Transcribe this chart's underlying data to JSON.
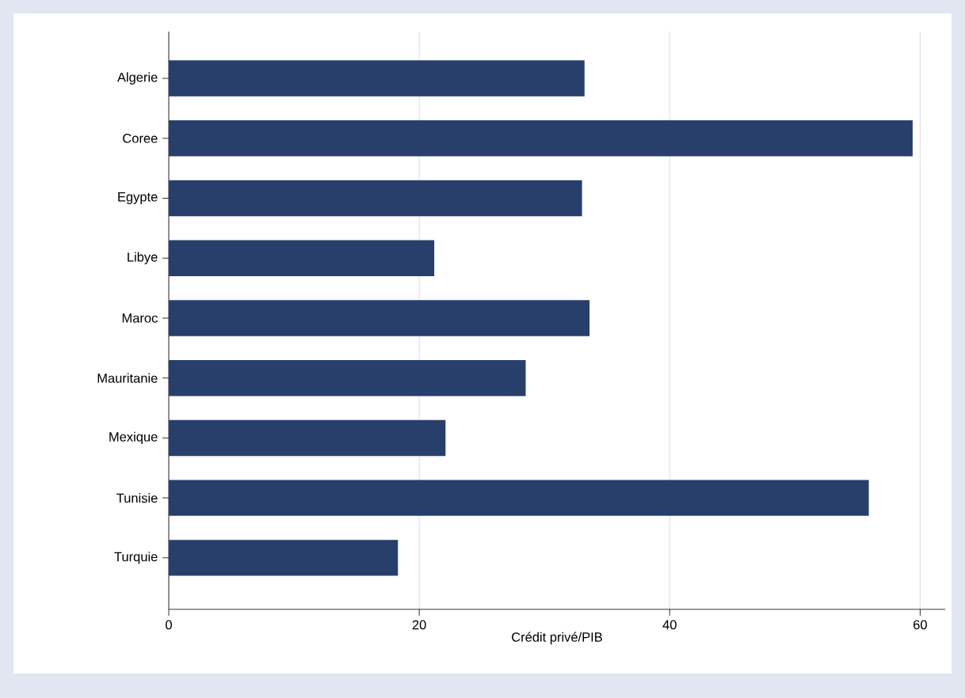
{
  "chart_data": {
    "type": "bar",
    "orientation": "horizontal",
    "xlabel": "Crédit privé/PIB",
    "categories": [
      "Algerie",
      "Coree",
      "Egypte",
      "Libye",
      "Maroc",
      "Mauritanie",
      "Mexique",
      "Tunisie",
      "Turquie"
    ],
    "values": [
      33.2,
      59.4,
      33.0,
      21.2,
      33.6,
      28.5,
      22.1,
      55.9,
      18.3
    ],
    "color": "#283f6c",
    "xlim": [
      0,
      62
    ],
    "xticks": [
      0,
      20,
      40,
      60
    ],
    "grid": "x"
  }
}
